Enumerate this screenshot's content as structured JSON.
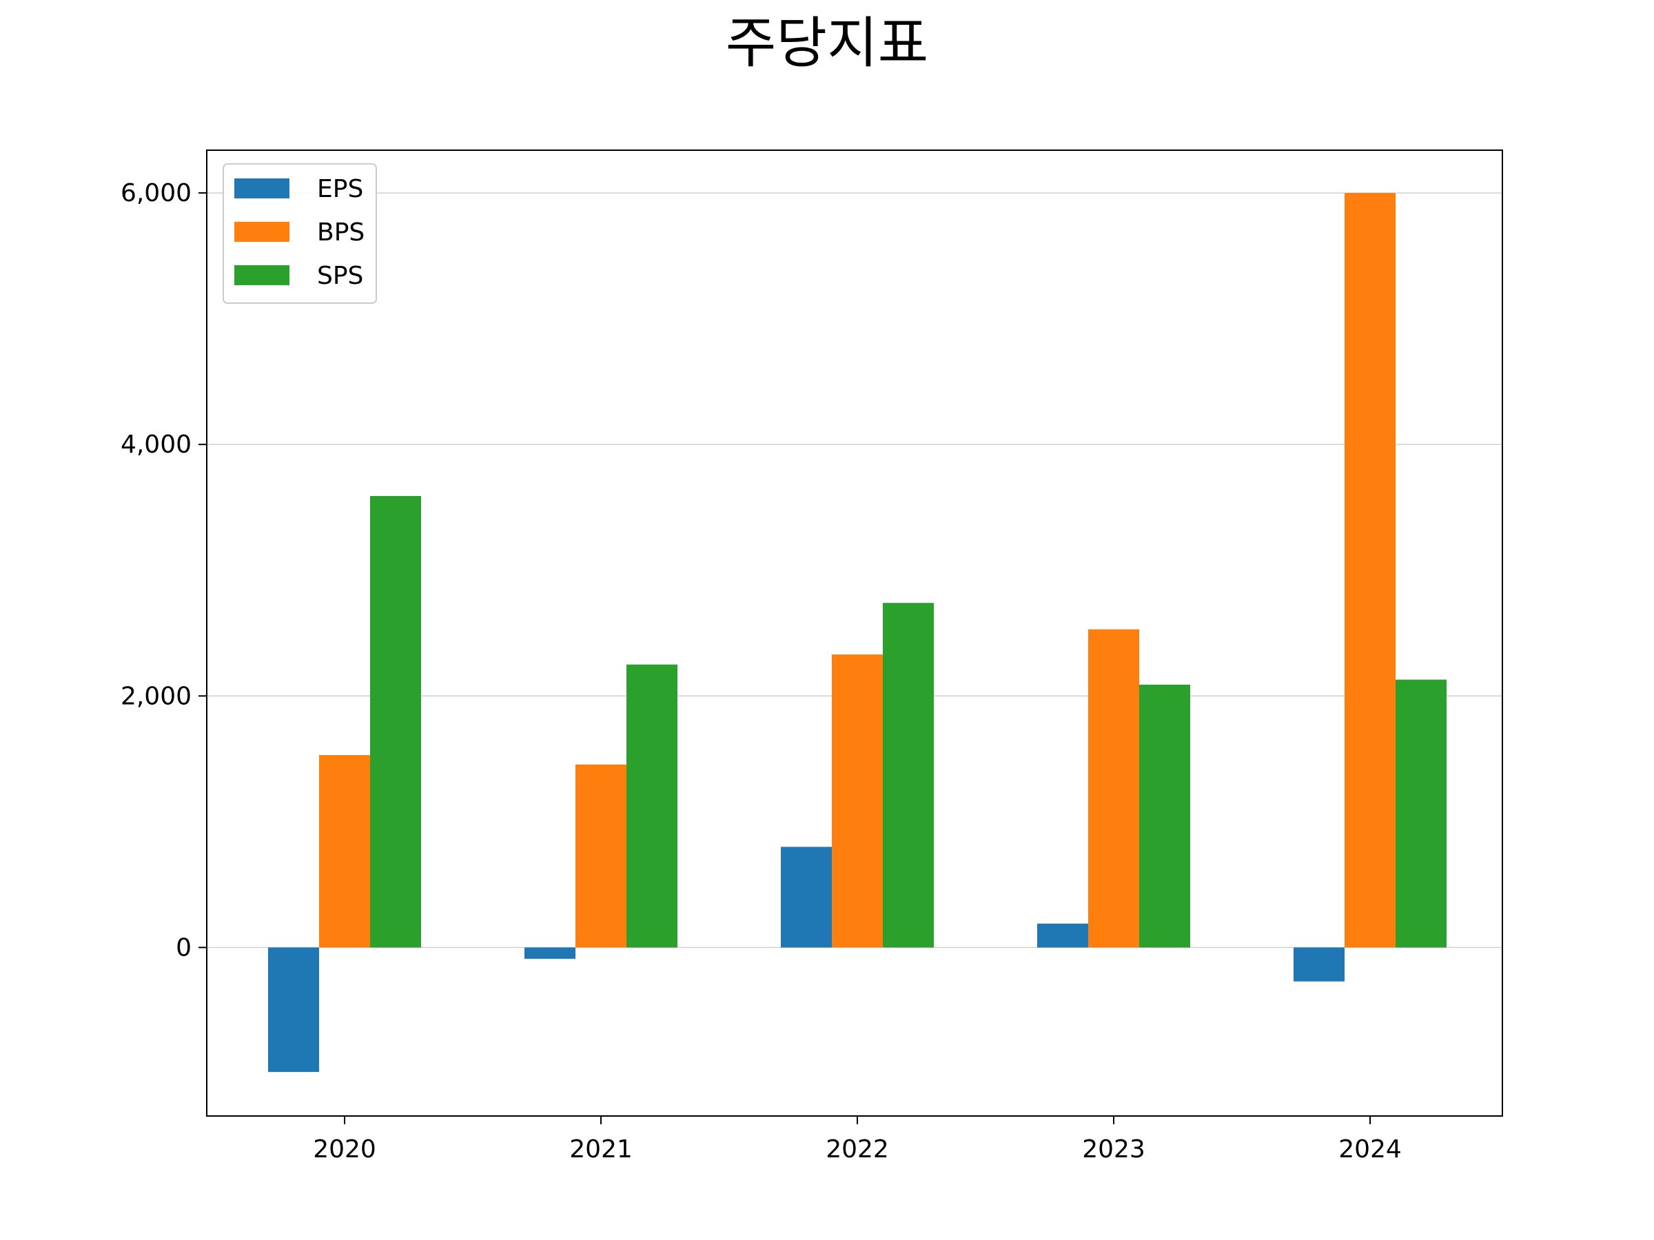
{
  "chart_data": {
    "type": "bar",
    "title": "주당지표",
    "xlabel": "",
    "ylabel": "",
    "categories": [
      "2020",
      "2021",
      "2022",
      "2023",
      "2024"
    ],
    "series": [
      {
        "name": "EPS",
        "color": "#1f77b4",
        "values": [
          -990,
          -90,
          800,
          190,
          -270
        ]
      },
      {
        "name": "BPS",
        "color": "#ff7f0e",
        "values": [
          1530,
          1455,
          2330,
          2530,
          6000
        ]
      },
      {
        "name": "SPS",
        "color": "#2ca02c",
        "values": [
          3590,
          2250,
          2740,
          2090,
          2130
        ]
      }
    ],
    "ylim": [
      -1340,
      6340
    ],
    "yticks": [
      0,
      2000,
      4000,
      6000
    ],
    "ytick_labels": [
      "0",
      "2,000",
      "4,000",
      "6,000"
    ],
    "grid": "horizontal",
    "legend": "top-left"
  }
}
